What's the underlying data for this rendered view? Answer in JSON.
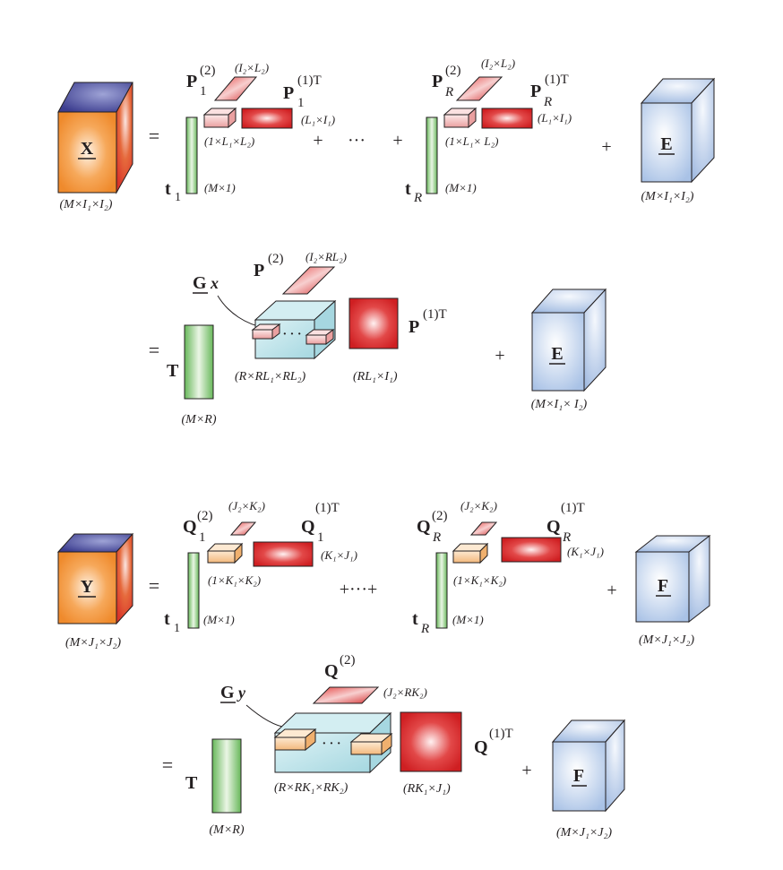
{
  "colors": {
    "orange": "#f39a45",
    "purple": "#3f3f92",
    "red": "#d62a2a",
    "green": "#6dbb5c",
    "blue": "#b5cbe9",
    "cyan": "#bfe4ea",
    "peach": "#f8cfa3",
    "pink": "#f4c3c3"
  },
  "icons": [
    "tensor-cube",
    "matrix-block",
    "vector-column",
    "slice-parallelogram",
    "fiber-tube"
  ],
  "eq1": {
    "X": "X",
    "X_dim": "(M×I₁×I₂)",
    "equals": "=",
    "plus": "+",
    "dots": "···",
    "P1_2": "P",
    "P1_2_sup": "(2)",
    "P1_2_sub": "1",
    "P1_2_dim": "(I₂×L₂)",
    "P1_1T": "P",
    "P1_1T_sup": "(1)T",
    "P1_1T_sub": "1",
    "P1_1T_dim": "(L₁×I₁)",
    "core1_dim": "(1×L₁×L₂)",
    "t1": "t",
    "t1_sub": "1",
    "t1_dim": "(M×1)",
    "PR_2": "P",
    "PR_2_sup": "(2)",
    "PR_2_sub": "R",
    "PR_2_dim": "(I₂×L₂)",
    "PR_1T": "P",
    "PR_1T_sup": "(1)T",
    "PR_1T_sub": "R",
    "PR_1T_dim": "(L₁×I₁)",
    "coreR_dim": "(1×L₁× L₂)",
    "tR": "t",
    "tR_sub": "R",
    "tR_dim": "(M×1)",
    "E": "E",
    "E_dim": "(M×I₁×I₂)"
  },
  "eq2": {
    "equals": "=",
    "T": "T",
    "T_dim": "(M×R)",
    "Gx": "G",
    "Gx_sub": "x",
    "G_dim": "(R×RL₁×RL₂)",
    "dots": "· · ·",
    "P2": "P",
    "P2_sup": "(2)",
    "P2_dim": "(I₂×RL₂)",
    "P1T": "P",
    "P1T_sup": "(1)T",
    "P1T_dim": "(RL₁×I₁)",
    "plus": "+",
    "E": "E",
    "E_dim": "(M×I₁× I₂)"
  },
  "eq3": {
    "Y": "Y",
    "Y_dim": "(M×J₁×J₂)",
    "equals": "=",
    "plus_dots": "+···+",
    "plus": "+",
    "Q1_2": "Q",
    "Q1_2_sup": "(2)",
    "Q1_2_sub": "1",
    "Q1_2_dim": "(J₂×K₂)",
    "Q1_1T": "Q",
    "Q1_1T_sup": "(1)T",
    "Q1_1T_sub": "1",
    "Q1_1T_dim": "(K₁×J₁)",
    "core1_dim": "(1×K₁×K₂)",
    "t1": "t",
    "t1_sub": "1",
    "t1_dim": "(M×1)",
    "QR_2": "Q",
    "QR_2_sup": "(2)",
    "QR_2_sub": "R",
    "QR_2_dim": "(J₂×K₂)",
    "QR_1T": "Q",
    "QR_1T_sup": "(1)T",
    "QR_1T_sub": "R",
    "QR_1T_dim": "(K₁×J₁)",
    "coreR_dim": "(1×K₁×K₂)",
    "tR": "t",
    "tR_sub": "R",
    "tR_dim": "(M×1)",
    "F": "F",
    "F_dim": "(M×J₁×J₂)"
  },
  "eq4": {
    "equals": "=",
    "T": "T",
    "T_dim": "(M×R)",
    "Gy": "G",
    "Gy_sub": "y",
    "G_dim": "(R×RK₁×RK₂)",
    "dots": "· · ·",
    "Q2": "Q",
    "Q2_sup": "(2)",
    "Q2_dim": "(J₂×RK₂)",
    "Q1T": "Q",
    "Q1T_sup": "(1)T",
    "Q1T_dim": "(RK₁×J₁)",
    "plus": "+",
    "F": "F",
    "F_dim": "(M×J₁×J₂)"
  }
}
